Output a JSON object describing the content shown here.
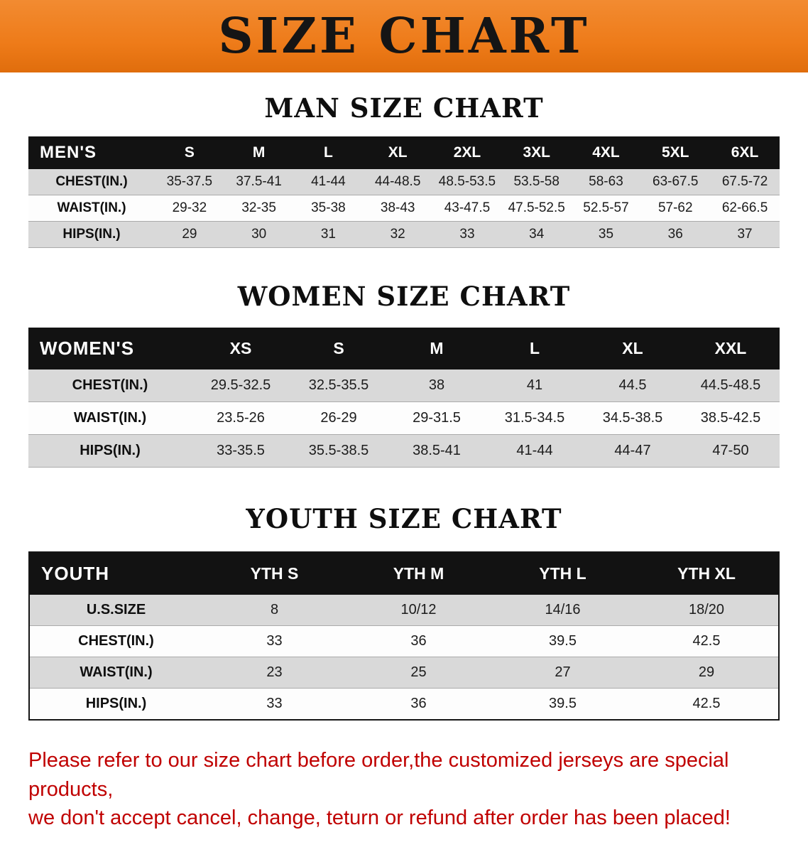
{
  "banner": {
    "title": "SIZE CHART",
    "bg_color": "#ee7b19",
    "text_color": "#151515"
  },
  "sections": [
    {
      "id": "men",
      "heading": "MAN SIZE CHART",
      "table": {
        "header": [
          "MEN'S",
          "S",
          "M",
          "L",
          "XL",
          "2XL",
          "3XL",
          "4XL",
          "5XL",
          "6XL"
        ],
        "rows": [
          [
            "CHEST(IN.)",
            "35-37.5",
            "37.5-41",
            "41-44",
            "44-48.5",
            "48.5-53.5",
            "53.5-58",
            "58-63",
            "63-67.5",
            "67.5-72"
          ],
          [
            "WAIST(IN.)",
            "29-32",
            "32-35",
            "35-38",
            "38-43",
            "43-47.5",
            "47.5-52.5",
            "52.5-57",
            "57-62",
            "62-66.5"
          ],
          [
            "HIPS(IN.)",
            "29",
            "30",
            "31",
            "32",
            "33",
            "34",
            "35",
            "36",
            "37"
          ]
        ]
      }
    },
    {
      "id": "women",
      "heading": "WOMEN SIZE CHART",
      "table": {
        "header": [
          "WOMEN'S",
          "XS",
          "S",
          "M",
          "L",
          "XL",
          "XXL"
        ],
        "rows": [
          [
            "CHEST(IN.)",
            "29.5-32.5",
            "32.5-35.5",
            "38",
            "41",
            "44.5",
            "44.5-48.5"
          ],
          [
            "WAIST(IN.)",
            "23.5-26",
            "26-29",
            "29-31.5",
            "31.5-34.5",
            "34.5-38.5",
            "38.5-42.5"
          ],
          [
            "HIPS(IN.)",
            "33-35.5",
            "35.5-38.5",
            "38.5-41",
            "41-44",
            "44-47",
            "47-50"
          ]
        ]
      }
    },
    {
      "id": "youth",
      "heading": "YOUTH SIZE CHART",
      "table": {
        "header": [
          "YOUTH",
          "YTH S",
          "YTH M",
          "YTH L",
          "YTH XL"
        ],
        "rows": [
          [
            "U.S.SIZE",
            "8",
            "10/12",
            "14/16",
            "18/20"
          ],
          [
            "CHEST(IN.)",
            "33",
            "36",
            "39.5",
            "42.5"
          ],
          [
            "WAIST(IN.)",
            "23",
            "25",
            "27",
            "29"
          ],
          [
            "HIPS(IN.)",
            "33",
            "36",
            "39.5",
            "42.5"
          ]
        ]
      }
    }
  ],
  "disclaimer": {
    "color": "#c00000",
    "lines": [
      "Please refer to our size chart before order,the customized jerseys are special products,",
      "we don't accept cancel, change, teturn or refund after order has been placed!"
    ]
  }
}
